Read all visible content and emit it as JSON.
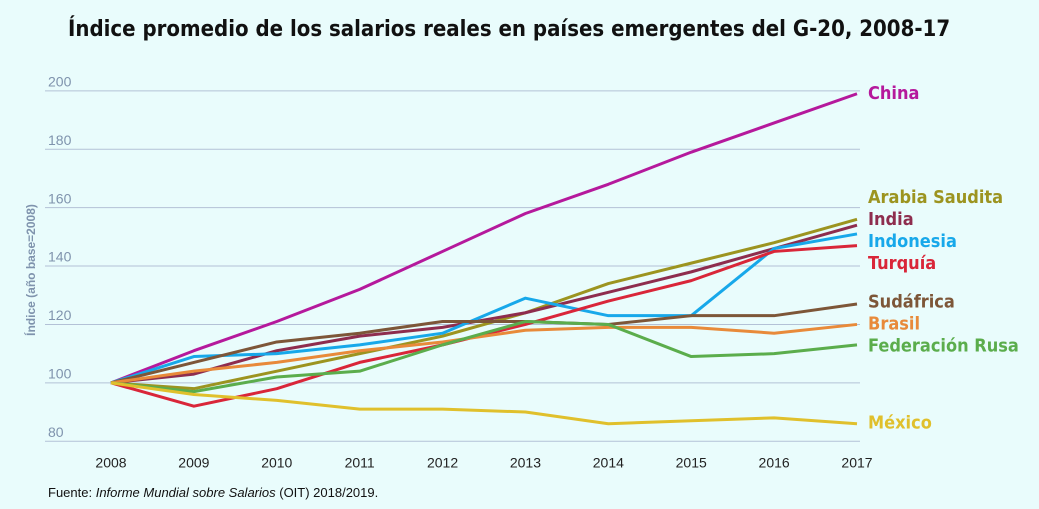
{
  "chart_data": {
    "type": "line",
    "title": "Índice promedio de los salarios reales en países emergentes del G-20, 2008-17",
    "y_label": "Índice (año base=2008)",
    "source": [
      "Fuente: ",
      "Informe Mundial sobre Salarios",
      " (OIT) 2018/2019."
    ],
    "x": [
      2008,
      2009,
      2010,
      2011,
      2012,
      2013,
      2014,
      2015,
      2016,
      2017
    ],
    "ylim": [
      77,
      202
    ],
    "yticks": [
      80,
      100,
      120,
      140,
      160,
      180,
      200
    ],
    "grid": true,
    "series": [
      {
        "name": "China",
        "color": "#b5199c",
        "values": [
          100,
          111,
          121,
          132,
          145,
          158,
          168,
          179,
          189,
          199
        ]
      },
      {
        "name": "Arabia Saudita",
        "color": "#9c9420",
        "values": [
          100,
          98,
          104,
          110,
          116,
          124,
          134,
          141,
          148,
          156
        ]
      },
      {
        "name": "India",
        "color": "#8e2d4e",
        "values": [
          100,
          103,
          111,
          116,
          119,
          124,
          131,
          138,
          146,
          154
        ]
      },
      {
        "name": "Indonesia",
        "color": "#17a8ea",
        "values": [
          100,
          109,
          110,
          113,
          117,
          129,
          123,
          123,
          146,
          151
        ]
      },
      {
        "name": "Turquía",
        "color": "#d92639",
        "values": [
          100,
          92,
          98,
          107,
          113,
          120,
          128,
          135,
          145,
          147
        ]
      },
      {
        "name": "Sudáfrica",
        "color": "#7d5638",
        "values": [
          100,
          107,
          114,
          117,
          121,
          121,
          120,
          123,
          123,
          127
        ]
      },
      {
        "name": "Brasil",
        "color": "#e88a3a",
        "values": [
          100,
          104,
          107,
          111,
          114,
          118,
          119,
          119,
          117,
          120
        ]
      },
      {
        "name": "Federación Rusa",
        "color": "#5bad4c",
        "values": [
          100,
          97,
          102,
          104,
          113,
          121,
          120,
          109,
          110,
          113
        ]
      },
      {
        "name": "México",
        "color": "#e0c02c",
        "values": [
          100,
          96,
          94,
          91,
          91,
          90,
          86,
          87,
          88,
          86
        ]
      }
    ]
  }
}
